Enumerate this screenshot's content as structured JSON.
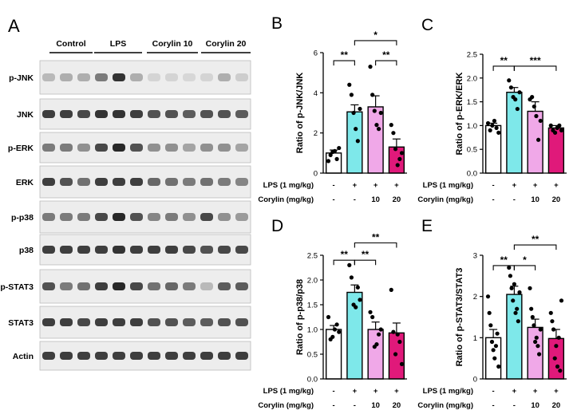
{
  "colors": {
    "control": "#ffffff",
    "lps": "#7ee8ea",
    "corylin10": "#f0a8e8",
    "corylin20": "#e0197a",
    "blot_bg": "#ededed",
    "band": "#1e1e1e"
  },
  "blot": {
    "panel_label": "A",
    "groups": [
      "Control",
      "LPS",
      "Corylin 10",
      "Corylin 20"
    ],
    "rows": [
      {
        "label": "p-JNK",
        "intensities": [
          0.25,
          0.3,
          0.3,
          0.55,
          0.9,
          0.3,
          0.12,
          0.12,
          0.1,
          0.12,
          0.3,
          0.15
        ]
      },
      {
        "label": "JNK",
        "intensities": [
          0.85,
          0.85,
          0.8,
          0.9,
          0.9,
          0.85,
          0.75,
          0.75,
          0.7,
          0.75,
          0.75,
          0.7
        ]
      },
      {
        "label": "p-ERK",
        "intensities": [
          0.55,
          0.55,
          0.45,
          0.8,
          0.95,
          0.75,
          0.45,
          0.45,
          0.35,
          0.45,
          0.45,
          0.35
        ]
      },
      {
        "label": "ERK",
        "intensities": [
          0.85,
          0.75,
          0.6,
          0.85,
          0.85,
          0.85,
          0.65,
          0.6,
          0.55,
          0.6,
          0.55,
          0.5
        ]
      },
      {
        "label": "p-p38",
        "intensities": [
          0.55,
          0.55,
          0.55,
          0.8,
          0.95,
          0.75,
          0.5,
          0.55,
          0.45,
          0.8,
          0.45,
          0.4
        ]
      },
      {
        "label": "p38",
        "intensities": [
          0.85,
          0.85,
          0.85,
          0.85,
          0.9,
          0.85,
          0.85,
          0.85,
          0.8,
          0.75,
          0.8,
          0.8
        ]
      },
      {
        "label": "p-STAT3",
        "intensities": [
          0.75,
          0.55,
          0.6,
          0.85,
          0.95,
          0.8,
          0.6,
          0.65,
          0.55,
          0.25,
          0.7,
          0.7
        ]
      },
      {
        "label": "STAT3",
        "intensities": [
          0.85,
          0.85,
          0.8,
          0.85,
          0.85,
          0.85,
          0.75,
          0.75,
          0.7,
          0.7,
          0.75,
          0.75
        ]
      },
      {
        "label": "Actin",
        "intensities": [
          0.85,
          0.85,
          0.85,
          0.85,
          0.85,
          0.85,
          0.85,
          0.85,
          0.85,
          0.85,
          0.85,
          0.85
        ]
      }
    ]
  },
  "chart_data": [
    {
      "id": "B",
      "type": "bar",
      "panel_label": "B",
      "ylabel": "Ratio of p-JNK/JNK",
      "ylim": [
        0,
        6
      ],
      "yticks": [
        0,
        2,
        4,
        6
      ],
      "values": [
        1.0,
        3.05,
        3.3,
        1.3
      ],
      "errors": [
        0.15,
        0.35,
        0.55,
        0.4
      ],
      "points": [
        [
          0.6,
          0.9,
          1.05,
          1.1,
          0.7,
          1.25
        ],
        [
          4.4,
          3.9,
          3.0,
          2.2,
          1.6,
          3.2
        ],
        [
          5.3,
          3.9,
          3.1,
          2.4,
          2.2,
          3.0
        ],
        [
          2.4,
          2.0,
          1.2,
          0.4,
          0.7,
          1.0
        ]
      ],
      "brackets": [
        {
          "from": 0,
          "to": 1,
          "y": 5.6,
          "label": "**"
        },
        {
          "from": 1,
          "to": 3,
          "y": 6.6,
          "label": "*"
        },
        {
          "from": 2,
          "to": 3,
          "y": 5.6,
          "label": "**"
        }
      ],
      "rows": [
        {
          "label": "LPS (1 mg/kg)",
          "values": [
            "-",
            "+",
            "+",
            "+"
          ]
        },
        {
          "label": "Corylin (mg/kg)",
          "values": [
            "-",
            "-",
            "10",
            "20"
          ]
        }
      ]
    },
    {
      "id": "C",
      "type": "bar",
      "panel_label": "C",
      "ylabel": "Ratio of p-ERK/ERK",
      "ylim": [
        0,
        2.5
      ],
      "yticks": [
        0.0,
        0.5,
        1.0,
        1.5,
        2.0,
        2.5
      ],
      "values": [
        1.0,
        1.7,
        1.3,
        0.95
      ],
      "errors": [
        0.05,
        0.1,
        0.2,
        0.05
      ],
      "points": [
        [
          1.05,
          0.9,
          1.0,
          1.1,
          0.95,
          0.85
        ],
        [
          1.95,
          1.8,
          1.6,
          1.55,
          1.35,
          1.7
        ],
        [
          1.55,
          1.6,
          1.4,
          1.2,
          0.7,
          1.1
        ],
        [
          1.0,
          0.9,
          0.85,
          0.95,
          1.0,
          0.9
        ]
      ],
      "brackets": [
        {
          "from": 0,
          "to": 1,
          "y": 2.25,
          "label": "**"
        },
        {
          "from": 1,
          "to": 3,
          "y": 2.25,
          "label": "***"
        }
      ],
      "rows": [
        {
          "label": "LPS (1 mg/kg)",
          "values": [
            "-",
            "+",
            "+",
            "+"
          ]
        },
        {
          "label": "Corylin (mg/kg)",
          "values": [
            "-",
            "-",
            "10",
            "20"
          ]
        }
      ]
    },
    {
      "id": "D",
      "type": "bar",
      "panel_label": "D",
      "ylabel": "Ratio of p-p38/p38",
      "ylim": [
        0,
        2.5
      ],
      "yticks": [
        0.0,
        0.5,
        1.0,
        1.5,
        2.0,
        2.5
      ],
      "values": [
        1.0,
        1.75,
        1.0,
        0.93
      ],
      "errors": [
        0.08,
        0.15,
        0.15,
        0.2
      ],
      "points": [
        [
          1.25,
          0.8,
          0.85,
          1.0,
          1.1,
          0.95
        ],
        [
          2.3,
          2.05,
          1.5,
          1.45,
          1.85,
          1.6
        ],
        [
          1.35,
          1.25,
          0.65,
          0.7,
          0.9,
          1.0
        ],
        [
          1.8,
          0.95,
          0.5,
          0.9,
          0.75,
          0.3
        ]
      ],
      "brackets": [
        {
          "from": 0,
          "to": 1,
          "y": 2.4,
          "label": "**"
        },
        {
          "from": 1,
          "to": 2,
          "y": 2.4,
          "label": "**"
        },
        {
          "from": 1,
          "to": 3,
          "y": 2.75,
          "label": "**"
        }
      ],
      "rows": [
        {
          "label": "LPS (1 mg/kg)",
          "values": [
            "-",
            "+",
            "+",
            "+"
          ]
        },
        {
          "label": "Corylin (mg/kg)",
          "values": [
            "-",
            "-",
            "10",
            "20"
          ]
        }
      ]
    },
    {
      "id": "E",
      "type": "bar",
      "panel_label": "E",
      "ylabel": "Ratio of p-STAT3/STAT3",
      "ylim": [
        0,
        3
      ],
      "yticks": [
        0,
        1,
        2,
        3
      ],
      "values": [
        1.0,
        2.05,
        1.25,
        0.98
      ],
      "errors": [
        0.2,
        0.2,
        0.2,
        0.22
      ],
      "points": [
        [
          2.0,
          1.6,
          1.3,
          0.9,
          0.7,
          0.5,
          0.8,
          1.1,
          0.3
        ],
        [
          2.7,
          2.5,
          2.2,
          1.9,
          2.3,
          1.6,
          1.7,
          1.4,
          2.1
        ],
        [
          2.2,
          1.7,
          1.5,
          1.3,
          0.9,
          1.0,
          0.8,
          0.6,
          1.2
        ],
        [
          1.6,
          1.4,
          1.2,
          0.5,
          0.8,
          0.3,
          1.0,
          0.2,
          1.9
        ]
      ],
      "brackets": [
        {
          "from": 0,
          "to": 1,
          "y": 2.75,
          "label": "**"
        },
        {
          "from": 1,
          "to": 2,
          "y": 2.75,
          "label": "*"
        },
        {
          "from": 1,
          "to": 3,
          "y": 3.25,
          "label": "**"
        }
      ],
      "rows": [
        {
          "label": "LPS (1 mg/kg)",
          "values": [
            "-",
            "+",
            "+",
            "+"
          ]
        },
        {
          "label": "Corylin (mg/kg)",
          "values": [
            "-",
            "-",
            "10",
            "20"
          ]
        }
      ]
    }
  ]
}
